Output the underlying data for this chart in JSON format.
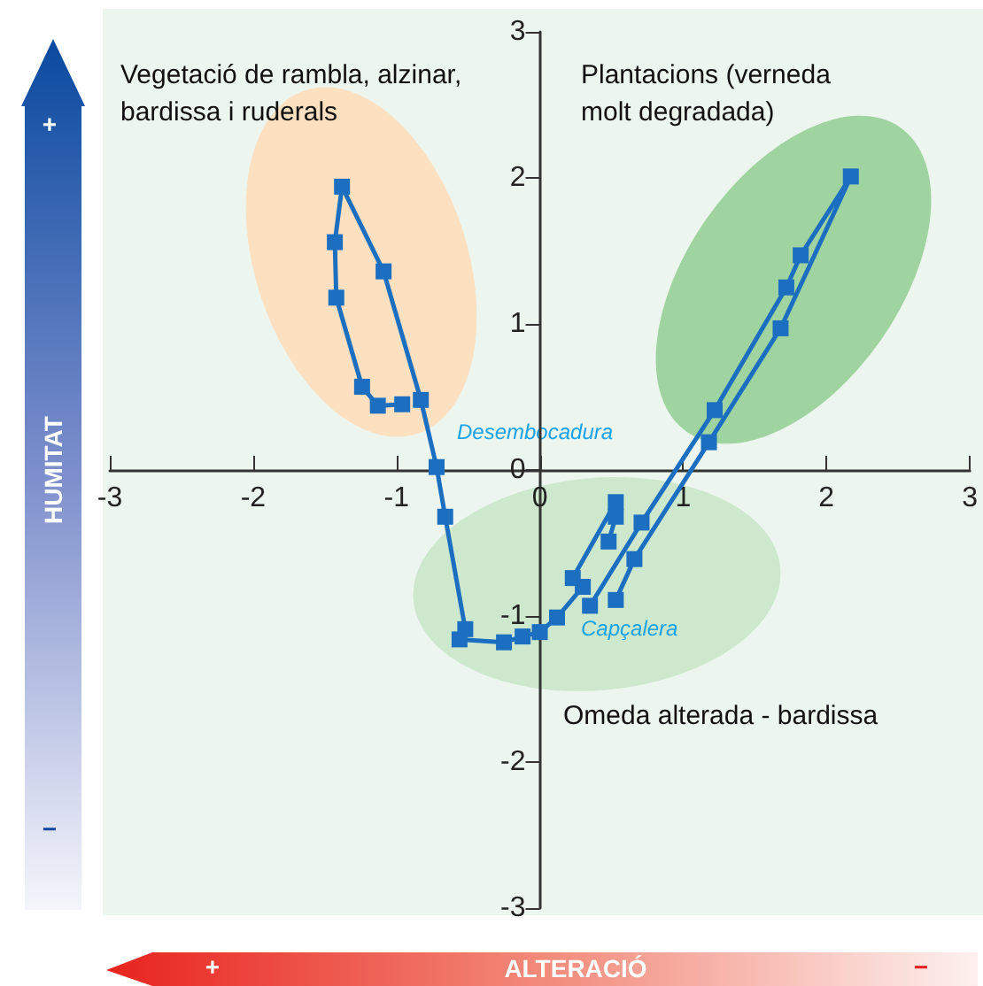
{
  "chart_data": {
    "type": "line",
    "xlabel": "ALTERACIÓ",
    "ylabel": "HUMITAT",
    "x": [
      0.53,
      0.66,
      1.18,
      1.68,
      2.17,
      1.82,
      1.72,
      1.22,
      0.71,
      0.35,
      null,
      0.48,
      0.53,
      0.53,
      0.23,
      0.3,
      0.12,
      0,
      -0.12,
      -0.25,
      -0.56,
      -0.52,
      -0.66,
      -0.72,
      -0.83,
      -1.09,
      -1.38,
      -1.43,
      -1.42,
      -1.24,
      -1.13,
      -0.96
    ],
    "values": [
      -0.89,
      -0.61,
      0.19,
      0.97,
      2.01,
      1.47,
      1.25,
      0.41,
      -0.36,
      -0.93,
      null,
      -0.49,
      -0.32,
      -0.22,
      -0.74,
      -0.8,
      -1.01,
      -1.11,
      -1.14,
      -1.18,
      -1.16,
      -1.09,
      -0.32,
      0.02,
      0.48,
      1.36,
      1.94,
      1.56,
      1.18,
      0.57,
      0.44,
      0.45
    ],
    "color": "#1c6fc0",
    "marker": "square",
    "line_style": "solid",
    "xlim": [
      -3,
      3
    ],
    "ylim": [
      -3,
      3
    ],
    "xticks": [
      -3,
      -2,
      -1,
      0,
      1,
      2,
      3
    ],
    "yticks": [
      -3,
      -2,
      -1,
      0,
      1,
      2,
      3
    ],
    "annotations": [
      "Vegetació de rambla, alzinar, bardissa i ruderals",
      "Plantacions (verneda molt degradada)",
      "Omeda alterada - bardissa",
      "Desembocadura",
      "Capçalera",
      "+",
      "−",
      "+",
      "−"
    ]
  }
}
